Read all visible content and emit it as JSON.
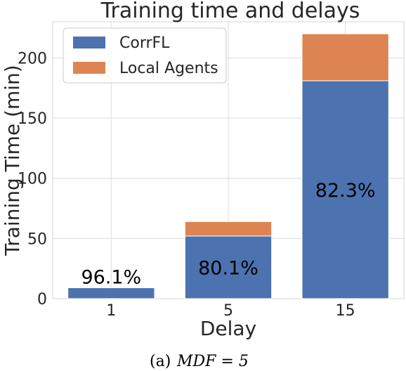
{
  "chart_data": {
    "type": "bar",
    "stacked": true,
    "title": "Training time and delays",
    "xlabel": "Delay",
    "ylabel": "Training Time (min)",
    "categories": [
      "1",
      "5",
      "15"
    ],
    "series": [
      {
        "name": "CorrFL",
        "values": [
          9,
          52,
          181
        ],
        "color": "#4c72b0"
      },
      {
        "name": "Local Agents",
        "values": [
          0,
          12,
          39
        ],
        "color": "#dd8452"
      }
    ],
    "bar_labels": [
      "96.1%",
      "80.1%",
      "82.3%"
    ],
    "ylim": [
      0,
      230
    ],
    "yticks": [
      0,
      50,
      100,
      150,
      200
    ],
    "grid": true,
    "legend_position": "top-left"
  },
  "caption": {
    "prefix": "(a)",
    "expression": "MDF = 5"
  }
}
